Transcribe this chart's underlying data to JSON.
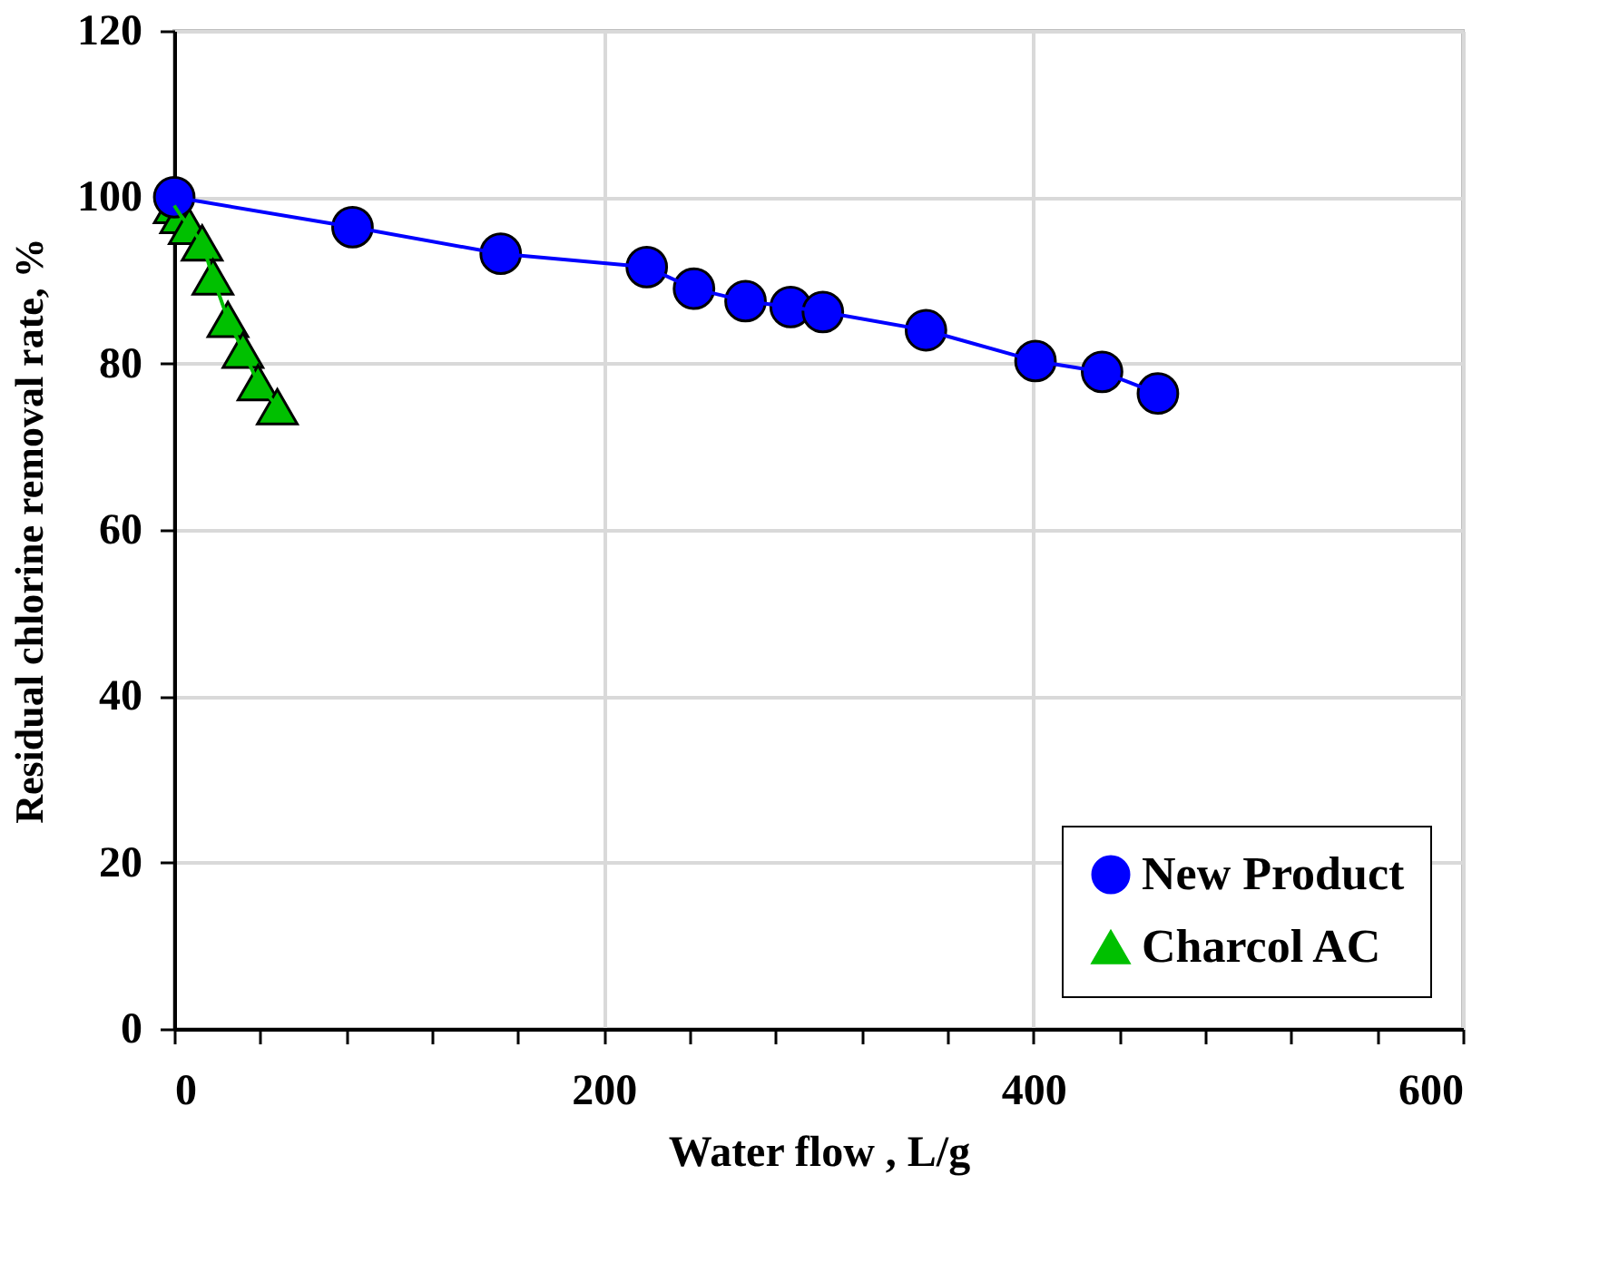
{
  "chart_data": {
    "type": "line",
    "xlabel": "Water flow , L/g",
    "ylabel": "Residual chlorine removal rate, %",
    "series": [
      {
        "name": "New Product",
        "color": "#0000ff",
        "marker": "circle",
        "x": [
          0,
          83,
          152,
          220,
          242,
          266,
          287,
          302,
          350,
          401,
          432,
          458
        ],
        "values": [
          100,
          96.4,
          93.2,
          91.6,
          89.0,
          87.5,
          86.8,
          86.2,
          84.0,
          80.3,
          79.0,
          76.4
        ]
      },
      {
        "name": "Charcol AC",
        "color": "#00c000",
        "marker": "triangle",
        "x": [
          0,
          3,
          7,
          13,
          18,
          25,
          32,
          39,
          48
        ],
        "values": [
          99.0,
          97.8,
          96.5,
          94.5,
          90.4,
          85.3,
          81.6,
          77.7,
          74.8
        ]
      }
    ],
    "xlim": [
      0,
      600
    ],
    "ylim": [
      0,
      120
    ],
    "xticks": [
      0,
      {
        "value": 40,
        "label": null
      },
      {
        "value": 80,
        "label": null
      },
      {
        "value": 120,
        "label": null
      },
      {
        "value": 160,
        "label": null
      },
      200,
      {
        "value": 240,
        "label": null
      },
      {
        "value": 280,
        "label": null
      },
      {
        "value": 320,
        "label": null
      },
      {
        "value": 360,
        "label": null
      },
      400,
      {
        "value": 440,
        "label": null
      },
      {
        "value": 480,
        "label": null
      },
      {
        "value": 520,
        "label": null
      },
      {
        "value": 560,
        "label": null
      },
      600
    ],
    "yticks": [
      0,
      20,
      40,
      60,
      80,
      100,
      120
    ],
    "grid": true,
    "legend": "bottom right",
    "line_style": "solid"
  }
}
